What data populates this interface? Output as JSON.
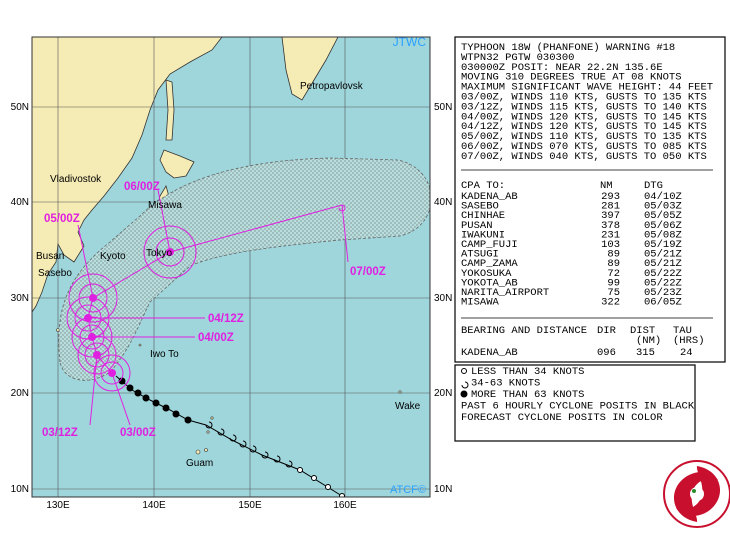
{
  "map": {
    "agency": "JTWC",
    "credit": "ATCF©",
    "lat_labels": [
      "50N",
      "40N",
      "30N",
      "20N",
      "10N"
    ],
    "lon_labels": [
      "130E",
      "140E",
      "150E",
      "160E"
    ],
    "places": [
      "Petropavlovsk",
      "Vladivostok",
      "Misawa",
      "Tokyo",
      "Kyoto",
      "Busan",
      "Sasebo",
      "Iwo To",
      "Wake",
      "Guam"
    ],
    "forecast_labels": [
      "06/00Z",
      "05/00Z",
      "07/00Z",
      "04/12Z",
      "04/00Z",
      "03/12Z",
      "03/00Z"
    ]
  },
  "warning": {
    "lines": [
      "TYPHOON 18W (PHANFONE) WARNING #18",
      "WTPN32 PGTW 030300",
      "030000Z POSIT: NEAR 22.2N 135.6E",
      "MOVING 310 DEGREES TRUE AT 08 KNOTS",
      "MAXIMUM SIGNIFICANT WAVE HEIGHT: 44 FEET",
      "03/00Z, WINDS 110 KTS, GUSTS TO 135 KTS",
      "03/12Z, WINDS 115 KTS, GUSTS TO 140 KTS",
      "04/00Z, WINDS 120 KTS, GUSTS TO 145 KTS",
      "04/12Z, WINDS 120 KTS, GUSTS TO 145 KTS",
      "05/00Z, WINDS 110 KTS, GUSTS TO 135 KTS",
      "06/00Z, WINDS 070 KTS, GUSTS TO 085 KTS",
      "07/00Z, WINDS 040 KTS, GUSTS TO 050 KTS"
    ]
  },
  "cpa": {
    "header": [
      "CPA TO:",
      "NM",
      "DTG"
    ],
    "rows": [
      [
        "KADENA_AB",
        "293",
        "04/10Z"
      ],
      [
        "SASEBO",
        "281",
        "05/03Z"
      ],
      [
        "CHINHAE",
        "397",
        "05/05Z"
      ],
      [
        "PUSAN",
        "378",
        "05/06Z"
      ],
      [
        "IWAKUNI",
        "231",
        "05/08Z"
      ],
      [
        "CAMP_FUJI",
        "103",
        "05/19Z"
      ],
      [
        "ATSUGI",
        "89",
        "05/21Z"
      ],
      [
        "CAMP_ZAMA",
        "89",
        "05/21Z"
      ],
      [
        "YOKOSUKA",
        "72",
        "05/22Z"
      ],
      [
        "YOKOTA_AB",
        "99",
        "05/22Z"
      ],
      [
        "NARITA_AIRPORT",
        "75",
        "05/23Z"
      ],
      [
        "MISAWA",
        "322",
        "06/05Z"
      ]
    ]
  },
  "bearing": {
    "header": [
      "BEARING AND DISTANCE",
      "DIR",
      "DIST",
      "TAU"
    ],
    "units": [
      "(NM)",
      "(HRS)"
    ],
    "rows": [
      [
        "KADENA_AB",
        "096",
        "315",
        "24"
      ]
    ]
  },
  "legend": [
    "LESS THAN 34 KNOTS",
    "34-63 KNOTS",
    "MORE THAN 63 KNOTS",
    "PAST 6 HOURLY CYCLONE POSITS IN BLACK",
    "FORECAST CYCLONE POSITS IN COLOR"
  ]
}
